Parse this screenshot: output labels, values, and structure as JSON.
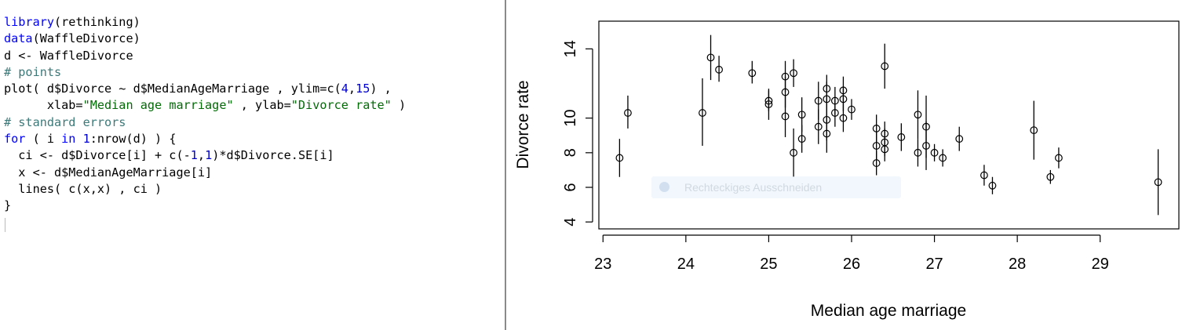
{
  "editor": {
    "lines": [
      [
        {
          "t": "library",
          "c": "kw"
        },
        {
          "t": "(rethinking)",
          "c": ""
        }
      ],
      [
        {
          "t": "data",
          "c": "kw"
        },
        {
          "t": "(WaffleDivorce)",
          "c": ""
        }
      ],
      [
        {
          "t": "d <- WaffleDivorce",
          "c": ""
        }
      ],
      [
        {
          "t": "# points",
          "c": "cm"
        }
      ],
      [
        {
          "t": "plot( d$Divorce ~ d$MedianAgeMarriage , ylim=c(",
          "c": ""
        },
        {
          "t": "4",
          "c": "nm"
        },
        {
          "t": ",",
          "c": ""
        },
        {
          "t": "15",
          "c": "nm"
        },
        {
          "t": ") ,",
          "c": ""
        }
      ],
      [
        {
          "t": "      xlab=",
          "c": ""
        },
        {
          "t": "\"Median age marriage\"",
          "c": "st"
        },
        {
          "t": " , ylab=",
          "c": ""
        },
        {
          "t": "\"Divorce rate\"",
          "c": "st"
        },
        {
          "t": " )",
          "c": ""
        }
      ],
      [
        {
          "t": "# standard errors",
          "c": "cm"
        }
      ],
      [
        {
          "t": "for",
          "c": "kw"
        },
        {
          "t": " ( i ",
          "c": ""
        },
        {
          "t": "in",
          "c": "kw"
        },
        {
          "t": " ",
          "c": ""
        },
        {
          "t": "1",
          "c": "nm"
        },
        {
          "t": ":nrow(d) ) {",
          "c": ""
        }
      ],
      [
        {
          "t": "  ci <- d$Divorce[i] + c(-",
          "c": ""
        },
        {
          "t": "1",
          "c": "nm"
        },
        {
          "t": ",",
          "c": ""
        },
        {
          "t": "1",
          "c": "nm"
        },
        {
          "t": ")*d$Divorce.SE[i]",
          "c": ""
        }
      ],
      [
        {
          "t": "  x <- d$MedianAgeMarriage[i]",
          "c": ""
        }
      ],
      [
        {
          "t": "  lines( c(x,x) , ci )",
          "c": ""
        }
      ],
      [
        {
          "t": "}",
          "c": ""
        }
      ]
    ]
  },
  "overlay_tooltip": "Rechteckiges Ausschneiden",
  "chart_data": {
    "type": "scatter",
    "xlabel": "Median age marriage",
    "ylabel": "Divorce rate",
    "xlim": [
      22.95,
      29.95
    ],
    "ylim": [
      3.6,
      15.6
    ],
    "xticks": [
      23,
      24,
      25,
      26,
      27,
      28,
      29
    ],
    "yticks": [
      4,
      6,
      8,
      10,
      14
    ],
    "points": [
      {
        "x": 23.2,
        "y": 7.7,
        "lo": 6.6,
        "hi": 8.8
      },
      {
        "x": 23.3,
        "y": 10.3,
        "lo": 9.4,
        "hi": 11.3
      },
      {
        "x": 24.2,
        "y": 10.3,
        "lo": 8.4,
        "hi": 12.3
      },
      {
        "x": 24.3,
        "y": 13.5,
        "lo": 12.2,
        "hi": 14.8
      },
      {
        "x": 24.4,
        "y": 12.8,
        "lo": 12.1,
        "hi": 13.6
      },
      {
        "x": 24.8,
        "y": 12.6,
        "lo": 12.0,
        "hi": 13.3
      },
      {
        "x": 25.0,
        "y": 11.0,
        "lo": 10.4,
        "hi": 11.6
      },
      {
        "x": 25.0,
        "y": 10.8,
        "lo": 9.9,
        "hi": 11.7
      },
      {
        "x": 25.2,
        "y": 12.4,
        "lo": 11.5,
        "hi": 13.3
      },
      {
        "x": 25.2,
        "y": 11.5,
        "lo": 10.6,
        "hi": 12.4
      },
      {
        "x": 25.2,
        "y": 10.1,
        "lo": 8.9,
        "hi": 11.3
      },
      {
        "x": 25.3,
        "y": 12.6,
        "lo": 11.8,
        "hi": 13.4
      },
      {
        "x": 25.3,
        "y": 8.0,
        "lo": 6.6,
        "hi": 9.4
      },
      {
        "x": 25.4,
        "y": 10.2,
        "lo": 9.2,
        "hi": 11.2
      },
      {
        "x": 25.4,
        "y": 8.8,
        "lo": 8.0,
        "hi": 9.6
      },
      {
        "x": 25.6,
        "y": 11.0,
        "lo": 9.9,
        "hi": 12.1
      },
      {
        "x": 25.6,
        "y": 9.5,
        "lo": 8.5,
        "hi": 10.5
      },
      {
        "x": 25.7,
        "y": 11.7,
        "lo": 10.9,
        "hi": 12.5
      },
      {
        "x": 25.7,
        "y": 11.1,
        "lo": 10.1,
        "hi": 12.1
      },
      {
        "x": 25.7,
        "y": 9.9,
        "lo": 8.7,
        "hi": 11.1
      },
      {
        "x": 25.7,
        "y": 9.1,
        "lo": 8.0,
        "hi": 10.2
      },
      {
        "x": 25.8,
        "y": 11.0,
        "lo": 10.2,
        "hi": 11.8
      },
      {
        "x": 25.8,
        "y": 10.3,
        "lo": 9.5,
        "hi": 11.1
      },
      {
        "x": 25.9,
        "y": 11.6,
        "lo": 10.8,
        "hi": 12.4
      },
      {
        "x": 25.9,
        "y": 11.1,
        "lo": 10.4,
        "hi": 11.8
      },
      {
        "x": 25.9,
        "y": 10.0,
        "lo": 9.2,
        "hi": 10.8
      },
      {
        "x": 26.0,
        "y": 10.5,
        "lo": 9.9,
        "hi": 11.1
      },
      {
        "x": 26.3,
        "y": 9.4,
        "lo": 8.6,
        "hi": 10.2
      },
      {
        "x": 26.3,
        "y": 8.4,
        "lo": 7.6,
        "hi": 9.2
      },
      {
        "x": 26.3,
        "y": 7.4,
        "lo": 6.7,
        "hi": 8.1
      },
      {
        "x": 26.4,
        "y": 13.0,
        "lo": 11.7,
        "hi": 14.3
      },
      {
        "x": 26.4,
        "y": 9.1,
        "lo": 8.4,
        "hi": 9.8
      },
      {
        "x": 26.4,
        "y": 8.6,
        "lo": 7.8,
        "hi": 9.4
      },
      {
        "x": 26.4,
        "y": 8.2,
        "lo": 7.5,
        "hi": 8.9
      },
      {
        "x": 26.6,
        "y": 8.9,
        "lo": 8.1,
        "hi": 9.7
      },
      {
        "x": 26.8,
        "y": 10.2,
        "lo": 8.8,
        "hi": 11.6
      },
      {
        "x": 26.8,
        "y": 8.0,
        "lo": 7.2,
        "hi": 8.8
      },
      {
        "x": 26.9,
        "y": 9.5,
        "lo": 7.7,
        "hi": 11.3
      },
      {
        "x": 26.9,
        "y": 8.4,
        "lo": 7.0,
        "hi": 9.8
      },
      {
        "x": 27.0,
        "y": 8.0,
        "lo": 7.5,
        "hi": 8.5
      },
      {
        "x": 27.1,
        "y": 7.7,
        "lo": 7.2,
        "hi": 8.2
      },
      {
        "x": 27.3,
        "y": 8.8,
        "lo": 8.1,
        "hi": 9.5
      },
      {
        "x": 27.6,
        "y": 6.7,
        "lo": 6.1,
        "hi": 7.3
      },
      {
        "x": 27.7,
        "y": 6.1,
        "lo": 5.6,
        "hi": 6.6
      },
      {
        "x": 28.2,
        "y": 9.3,
        "lo": 7.6,
        "hi": 11.0
      },
      {
        "x": 28.4,
        "y": 6.6,
        "lo": 6.2,
        "hi": 7.0
      },
      {
        "x": 28.5,
        "y": 7.7,
        "lo": 7.1,
        "hi": 8.3
      },
      {
        "x": 29.7,
        "y": 6.3,
        "lo": 4.4,
        "hi": 8.2
      }
    ]
  }
}
